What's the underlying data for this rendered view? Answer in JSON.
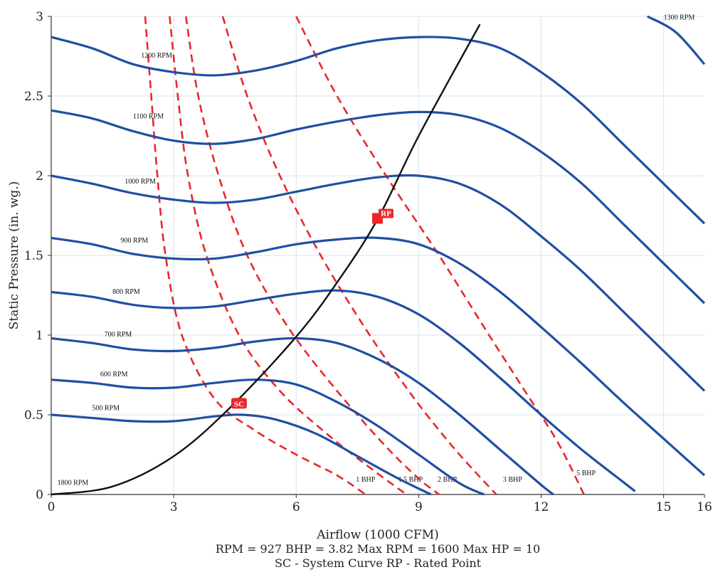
{
  "chart_data": {
    "type": "line",
    "xlabel": "Airflow (1000 CFM)",
    "ylabel": "Static Pressure (in. wg.)",
    "xlim": [
      0,
      16
    ],
    "ylim": [
      0,
      3
    ],
    "xticks": [
      0,
      3,
      6,
      9,
      12,
      15,
      16
    ],
    "yticks": [
      0,
      0.5,
      1,
      1.5,
      2,
      2.5,
      3
    ],
    "grid": true,
    "captions": [
      "RPM = 927  BHP = 3.82  Max RPM = 1600   Max HP = 10",
      "SC - System Curve  RP - Rated Point"
    ],
    "colors": {
      "rpm_curves": "#1f4fa3",
      "bhp_curves": "#e8282b",
      "system_curve": "#111111",
      "marker": "#e8282b",
      "grid": "#d7e3ee"
    },
    "rpm_curves": [
      {
        "name": "1300 RPM",
        "label_at": [
          15,
          2.98
        ],
        "points": [
          [
            14.6,
            3.0
          ],
          [
            15.3,
            2.9
          ],
          [
            16,
            2.7
          ]
        ]
      },
      {
        "name": "1200 RPM",
        "label_at": [
          2.2,
          2.74
        ],
        "points": [
          [
            0,
            2.87
          ],
          [
            1,
            2.8
          ],
          [
            2,
            2.7
          ],
          [
            3,
            2.65
          ],
          [
            4,
            2.63
          ],
          [
            5,
            2.66
          ],
          [
            6,
            2.72
          ],
          [
            7,
            2.8
          ],
          [
            8,
            2.85
          ],
          [
            9,
            2.87
          ],
          [
            10,
            2.86
          ],
          [
            11,
            2.8
          ],
          [
            12,
            2.65
          ],
          [
            13,
            2.45
          ],
          [
            14,
            2.2
          ],
          [
            15,
            1.95
          ],
          [
            16,
            1.7
          ]
        ]
      },
      {
        "name": "1100 RPM",
        "label_at": [
          2.0,
          2.36
        ],
        "points": [
          [
            0,
            2.41
          ],
          [
            1,
            2.36
          ],
          [
            2,
            2.28
          ],
          [
            3,
            2.22
          ],
          [
            4,
            2.2
          ],
          [
            5,
            2.23
          ],
          [
            6,
            2.29
          ],
          [
            7,
            2.34
          ],
          [
            8,
            2.38
          ],
          [
            9,
            2.4
          ],
          [
            10,
            2.38
          ],
          [
            11,
            2.3
          ],
          [
            12,
            2.15
          ],
          [
            13,
            1.95
          ],
          [
            14,
            1.7
          ],
          [
            15,
            1.45
          ],
          [
            16,
            1.2
          ]
        ]
      },
      {
        "name": "1000 RPM",
        "label_at": [
          1.8,
          1.95
        ],
        "points": [
          [
            0,
            2.0
          ],
          [
            1,
            1.95
          ],
          [
            2,
            1.89
          ],
          [
            3,
            1.85
          ],
          [
            4,
            1.83
          ],
          [
            5,
            1.85
          ],
          [
            6,
            1.9
          ],
          [
            7,
            1.95
          ],
          [
            8,
            1.99
          ],
          [
            9,
            2.0
          ],
          [
            10,
            1.95
          ],
          [
            11,
            1.82
          ],
          [
            12,
            1.62
          ],
          [
            13,
            1.4
          ],
          [
            14,
            1.15
          ],
          [
            15,
            0.9
          ],
          [
            16,
            0.65
          ]
        ]
      },
      {
        "name": "900 RPM",
        "label_at": [
          1.7,
          1.58
        ],
        "points": [
          [
            0,
            1.61
          ],
          [
            1,
            1.57
          ],
          [
            2,
            1.51
          ],
          [
            3,
            1.48
          ],
          [
            4,
            1.48
          ],
          [
            5,
            1.52
          ],
          [
            6,
            1.57
          ],
          [
            7,
            1.6
          ],
          [
            8,
            1.61
          ],
          [
            9,
            1.57
          ],
          [
            10,
            1.45
          ],
          [
            11,
            1.27
          ],
          [
            12,
            1.05
          ],
          [
            13,
            0.82
          ],
          [
            14,
            0.58
          ],
          [
            15,
            0.35
          ],
          [
            16,
            0.12
          ]
        ]
      },
      {
        "name": "800 RPM",
        "label_at": [
          1.5,
          1.26
        ],
        "points": [
          [
            0,
            1.27
          ],
          [
            1,
            1.24
          ],
          [
            2,
            1.19
          ],
          [
            3,
            1.17
          ],
          [
            4,
            1.18
          ],
          [
            5,
            1.22
          ],
          [
            6,
            1.26
          ],
          [
            7,
            1.28
          ],
          [
            8,
            1.24
          ],
          [
            9,
            1.13
          ],
          [
            10,
            0.95
          ],
          [
            11,
            0.73
          ],
          [
            12,
            0.5
          ],
          [
            13,
            0.28
          ],
          [
            14,
            0.08
          ],
          [
            14.3,
            0.02
          ]
        ]
      },
      {
        "name": "700 RPM",
        "label_at": [
          1.3,
          0.99
        ],
        "points": [
          [
            0,
            0.98
          ],
          [
            1,
            0.95
          ],
          [
            2,
            0.91
          ],
          [
            3,
            0.9
          ],
          [
            4,
            0.92
          ],
          [
            5,
            0.96
          ],
          [
            6,
            0.98
          ],
          [
            7,
            0.95
          ],
          [
            8,
            0.85
          ],
          [
            9,
            0.7
          ],
          [
            10,
            0.5
          ],
          [
            11,
            0.28
          ],
          [
            12,
            0.06
          ],
          [
            12.3,
            0.0
          ]
        ]
      },
      {
        "name": "600 RPM",
        "label_at": [
          1.2,
          0.74
        ],
        "points": [
          [
            0,
            0.72
          ],
          [
            1,
            0.7
          ],
          [
            2,
            0.67
          ],
          [
            3,
            0.67
          ],
          [
            4,
            0.7
          ],
          [
            5,
            0.72
          ],
          [
            6,
            0.69
          ],
          [
            7,
            0.58
          ],
          [
            8,
            0.43
          ],
          [
            9,
            0.25
          ],
          [
            10,
            0.07
          ],
          [
            10.6,
            0.0
          ]
        ]
      },
      {
        "name": "500 RPM",
        "label_at": [
          1.0,
          0.53
        ],
        "points": [
          [
            0,
            0.5
          ],
          [
            1,
            0.48
          ],
          [
            2,
            0.46
          ],
          [
            3,
            0.46
          ],
          [
            4,
            0.49
          ],
          [
            4.7,
            0.5
          ],
          [
            5.5,
            0.47
          ],
          [
            6.5,
            0.38
          ],
          [
            7.5,
            0.24
          ],
          [
            8.5,
            0.1
          ],
          [
            9.3,
            0.0
          ]
        ]
      },
      {
        "name": "1800 RPM",
        "label_at": [
          0.15,
          0.06
        ],
        "points": []
      }
    ],
    "bhp_curves": [
      {
        "name": "1 BHP",
        "label_at": [
          7.7,
          0.08
        ],
        "points": [
          [
            2.3,
            3.0
          ],
          [
            2.45,
            2.5
          ],
          [
            2.6,
            2.0
          ],
          [
            2.8,
            1.5
          ],
          [
            3.2,
            1.0
          ],
          [
            4.0,
            0.6
          ],
          [
            5.0,
            0.4
          ],
          [
            6.0,
            0.25
          ],
          [
            7.0,
            0.12
          ],
          [
            7.7,
            0.0
          ]
        ]
      },
      {
        "name": "1.5 BHP",
        "label_at": [
          8.8,
          0.08
        ],
        "points": [
          [
            2.9,
            3.0
          ],
          [
            3.1,
            2.5
          ],
          [
            3.35,
            2.0
          ],
          [
            3.8,
            1.5
          ],
          [
            4.6,
            1.0
          ],
          [
            5.6,
            0.65
          ],
          [
            6.8,
            0.37
          ],
          [
            7.9,
            0.15
          ],
          [
            8.7,
            0.0
          ]
        ]
      },
      {
        "name": "2 BHP",
        "label_at": [
          9.7,
          0.08
        ],
        "points": [
          [
            3.3,
            3.0
          ],
          [
            3.6,
            2.5
          ],
          [
            4.1,
            2.0
          ],
          [
            4.8,
            1.5
          ],
          [
            5.8,
            1.05
          ],
          [
            7.0,
            0.65
          ],
          [
            8.2,
            0.3
          ],
          [
            9.0,
            0.1
          ],
          [
            9.5,
            0.0
          ]
        ]
      },
      {
        "name": "3 BHP",
        "label_at": [
          11.3,
          0.08
        ],
        "points": [
          [
            4.2,
            3.0
          ],
          [
            4.8,
            2.5
          ],
          [
            5.6,
            2.0
          ],
          [
            6.6,
            1.5
          ],
          [
            7.8,
            1.0
          ],
          [
            8.9,
            0.6
          ],
          [
            9.9,
            0.28
          ],
          [
            10.9,
            0.0
          ]
        ]
      },
      {
        "name": "5 BHP",
        "label_at": [
          13.1,
          0.12
        ],
        "points": [
          [
            6.0,
            3.0
          ],
          [
            7.0,
            2.5
          ],
          [
            8.2,
            2.0
          ],
          [
            9.5,
            1.5
          ],
          [
            10.6,
            1.05
          ],
          [
            11.6,
            0.65
          ],
          [
            12.4,
            0.33
          ],
          [
            13.05,
            0.0
          ]
        ]
      }
    ],
    "system_curve": {
      "name": "SC",
      "points": [
        [
          0,
          0.0
        ],
        [
          1.5,
          0.05
        ],
        [
          3,
          0.24
        ],
        [
          4.4,
          0.55
        ],
        [
          6,
          0.99
        ],
        [
          7,
          1.33
        ],
        [
          8,
          1.73
        ],
        [
          9,
          2.25
        ],
        [
          10.5,
          2.95
        ]
      ]
    },
    "markers": [
      {
        "label": "SC",
        "x": 4.6,
        "y": 0.57
      },
      {
        "label": "RP",
        "x": 8.0,
        "y": 1.73
      }
    ]
  }
}
